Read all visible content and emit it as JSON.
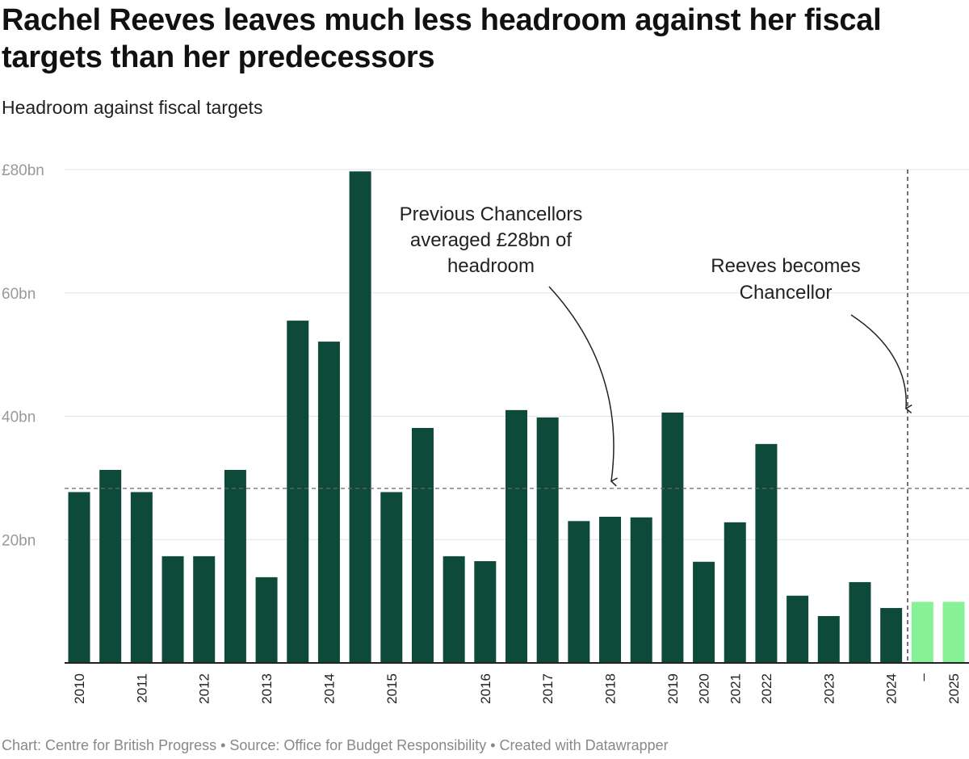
{
  "title": "Rachel Reeves leaves much less headroom against her fiscal targets than her predecessors",
  "subtitle": "Headroom against fiscal targets",
  "footer": "Chart: Centre for British Progress • Source: Office for Budget Responsibility • Created with Datawrapper",
  "chart_data": {
    "type": "bar",
    "title": "Rachel Reeves leaves much less headroom against her fiscal targets than her predecessors",
    "subtitle": "Headroom against fiscal targets",
    "ylabel": "",
    "xlabel": "",
    "unit": "£bn",
    "ylim": [
      0,
      80
    ],
    "yticks": [
      {
        "value": 80,
        "label": "£80bn"
      },
      {
        "value": 60,
        "label": "60bn"
      },
      {
        "value": 40,
        "label": "40bn"
      },
      {
        "value": 20,
        "label": "20bn"
      }
    ],
    "grid": true,
    "categories": [
      "2010",
      "",
      "2011",
      "",
      "2012",
      "",
      "2013",
      "",
      "2014",
      "",
      "2015",
      "",
      "",
      "2016",
      "",
      "2017",
      "",
      "2018",
      "",
      "2019",
      "2020",
      "2021",
      "2022",
      "",
      "2023",
      "",
      "2024",
      "–",
      "2025"
    ],
    "values": [
      27.7,
      31.3,
      27.7,
      17.3,
      17.3,
      31.3,
      13.9,
      55.5,
      52.1,
      79.7,
      27.7,
      38.1,
      17.3,
      16.5,
      41.0,
      39.8,
      23.0,
      23.7,
      23.6,
      40.6,
      16.4,
      22.8,
      35.5,
      10.9,
      7.6,
      13.1,
      8.9,
      9.9,
      9.9
    ],
    "highlight_from_index": 27,
    "colors": {
      "previous": "#0d4a3a",
      "reeves": "#86f196"
    },
    "average_line": {
      "value": 28.3
    },
    "reeves_marker_between": [
      "2024",
      "–"
    ],
    "annotations": [
      {
        "id": "avg",
        "lines": [
          "Previous Chancellors",
          "averaged £28bn of",
          "headroom"
        ]
      },
      {
        "id": "reeves",
        "lines": [
          "Reeves becomes",
          "Chancellor"
        ]
      }
    ]
  }
}
